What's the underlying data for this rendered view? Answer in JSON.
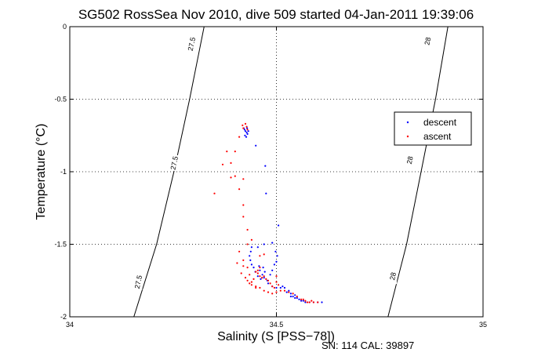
{
  "chart_data": {
    "type": "scatter",
    "title": "SG502 RossSea Nov 2010, dive 509 started 04-Jan-2011 19:39:06",
    "xlabel": "Salinity (S [PSS−78])",
    "ylabel": "Temperature (°C)",
    "xlim": [
      34,
      35
    ],
    "ylim": [
      -2,
      0
    ],
    "x_ticks": [
      "34",
      "34.5",
      "35"
    ],
    "y_ticks": [
      "0",
      "-0.5",
      "-1",
      "-1.5",
      "-2"
    ],
    "grid": "dotted",
    "legend_position": "top-right",
    "density_contours": [
      {
        "label": "27.5",
        "points": [
          [
            34.155,
            -2.0
          ],
          [
            34.21,
            -1.5
          ],
          [
            34.252,
            -1.0
          ],
          [
            34.29,
            -0.5
          ],
          [
            34.325,
            0.0
          ]
        ]
      },
      {
        "label": "28",
        "points": [
          [
            34.77,
            -2.0
          ],
          [
            34.815,
            -1.5
          ],
          [
            34.85,
            -1.0
          ],
          [
            34.885,
            -0.5
          ],
          [
            34.915,
            0.0
          ]
        ]
      }
    ],
    "contour_label_positions": [
      {
        "label": "27.5",
        "x": 34.295,
        "y": -0.12
      },
      {
        "label": "27.5",
        "x": 34.253,
        "y": -0.94
      },
      {
        "label": "27.5",
        "x": 34.166,
        "y": -1.76
      },
      {
        "label": "28",
        "x": 34.866,
        "y": -0.1
      },
      {
        "label": "28",
        "x": 34.823,
        "y": -0.92
      },
      {
        "label": "28",
        "x": 34.782,
        "y": -1.72
      }
    ],
    "series": [
      {
        "name": "descent",
        "color": "#0000ff",
        "points": [
          [
            34.421,
            -0.7
          ],
          [
            34.425,
            -0.72
          ],
          [
            34.428,
            -0.73
          ],
          [
            34.423,
            -0.71
          ],
          [
            34.43,
            -0.74
          ],
          [
            34.432,
            -0.72
          ],
          [
            34.427,
            -0.76
          ],
          [
            34.424,
            -0.75
          ],
          [
            34.429,
            -0.7
          ],
          [
            34.45,
            -0.82
          ],
          [
            34.473,
            -0.96
          ],
          [
            34.475,
            -1.15
          ],
          [
            34.505,
            -1.37
          ],
          [
            34.44,
            -1.52
          ],
          [
            34.455,
            -1.52
          ],
          [
            34.47,
            -1.5
          ],
          [
            34.49,
            -1.49
          ],
          [
            34.438,
            -1.55
          ],
          [
            34.435,
            -1.58
          ],
          [
            34.437,
            -1.61
          ],
          [
            34.44,
            -1.64
          ],
          [
            34.445,
            -1.66
          ],
          [
            34.449,
            -1.69
          ],
          [
            34.455,
            -1.72
          ],
          [
            34.462,
            -1.74
          ],
          [
            34.47,
            -1.73
          ],
          [
            34.478,
            -1.75
          ],
          [
            34.485,
            -1.71
          ],
          [
            34.49,
            -1.68
          ],
          [
            34.495,
            -1.64
          ],
          [
            34.5,
            -1.62
          ],
          [
            34.502,
            -1.58
          ],
          [
            34.498,
            -1.55
          ],
          [
            34.468,
            -1.66
          ],
          [
            34.472,
            -1.69
          ],
          [
            34.466,
            -1.71
          ],
          [
            34.46,
            -1.68
          ],
          [
            34.458,
            -1.65
          ],
          [
            34.48,
            -1.77
          ],
          [
            34.49,
            -1.79
          ],
          [
            34.5,
            -1.8
          ],
          [
            34.51,
            -1.8
          ],
          [
            34.52,
            -1.8
          ],
          [
            34.53,
            -1.82
          ],
          [
            34.535,
            -1.84
          ],
          [
            34.54,
            -1.86
          ],
          [
            34.545,
            -1.87
          ],
          [
            34.55,
            -1.87
          ],
          [
            34.555,
            -1.88
          ],
          [
            34.56,
            -1.89
          ],
          [
            34.565,
            -1.89
          ],
          [
            34.57,
            -1.9
          ],
          [
            34.58,
            -1.9
          ],
          [
            34.59,
            -1.9
          ],
          [
            34.6,
            -1.9
          ],
          [
            34.61,
            -1.9
          ],
          [
            34.545,
            -1.85
          ],
          [
            34.535,
            -1.86
          ],
          [
            34.525,
            -1.83
          ],
          [
            34.515,
            -1.79
          ]
        ]
      },
      {
        "name": "ascent",
        "color": "#ff0000",
        "points": [
          [
            34.418,
            -0.68
          ],
          [
            34.42,
            -0.7
          ],
          [
            34.425,
            -0.67
          ],
          [
            34.43,
            -0.71
          ],
          [
            34.428,
            -0.69
          ],
          [
            34.41,
            -0.76
          ],
          [
            34.4,
            -0.86
          ],
          [
            34.38,
            -0.86
          ],
          [
            34.39,
            -0.94
          ],
          [
            34.37,
            -0.95
          ],
          [
            34.4,
            -1.03
          ],
          [
            34.39,
            -1.04
          ],
          [
            34.42,
            -1.05
          ],
          [
            34.41,
            -1.12
          ],
          [
            34.35,
            -1.15
          ],
          [
            34.42,
            -1.23
          ],
          [
            34.42,
            -1.31
          ],
          [
            34.43,
            -1.4
          ],
          [
            34.44,
            -1.47
          ],
          [
            34.43,
            -1.5
          ],
          [
            34.41,
            -1.55
          ],
          [
            34.405,
            -1.63
          ],
          [
            34.42,
            -1.65
          ],
          [
            34.415,
            -1.7
          ],
          [
            34.425,
            -1.73
          ],
          [
            34.43,
            -1.75
          ],
          [
            34.435,
            -1.77
          ],
          [
            34.44,
            -1.78
          ],
          [
            34.45,
            -1.79
          ],
          [
            34.46,
            -1.8
          ],
          [
            34.47,
            -1.82
          ],
          [
            34.48,
            -1.83
          ],
          [
            34.49,
            -1.84
          ],
          [
            34.5,
            -1.83
          ],
          [
            34.51,
            -1.82
          ],
          [
            34.45,
            -1.69
          ],
          [
            34.455,
            -1.7
          ],
          [
            34.46,
            -1.72
          ],
          [
            34.465,
            -1.73
          ],
          [
            34.47,
            -1.72
          ],
          [
            34.475,
            -1.74
          ],
          [
            34.48,
            -1.75
          ],
          [
            34.485,
            -1.77
          ],
          [
            34.49,
            -1.79
          ],
          [
            34.495,
            -1.8
          ],
          [
            34.455,
            -1.68
          ],
          [
            34.46,
            -1.66
          ],
          [
            34.445,
            -1.74
          ],
          [
            34.44,
            -1.76
          ],
          [
            34.435,
            -1.71
          ],
          [
            34.46,
            -1.58
          ],
          [
            34.47,
            -1.57
          ],
          [
            34.52,
            -1.82
          ],
          [
            34.53,
            -1.83
          ],
          [
            34.54,
            -1.84
          ],
          [
            34.55,
            -1.86
          ],
          [
            34.56,
            -1.88
          ],
          [
            34.57,
            -1.89
          ],
          [
            34.58,
            -1.9
          ],
          [
            34.59,
            -1.9
          ],
          [
            34.6,
            -1.9
          ],
          [
            34.585,
            -1.89
          ],
          [
            34.575,
            -1.9
          ],
          [
            34.565,
            -1.88
          ],
          [
            34.5,
            -1.76
          ],
          [
            34.505,
            -1.78
          ],
          [
            34.45,
            -1.8
          ],
          [
            34.43,
            -1.66
          ],
          [
            34.42,
            -1.61
          ],
          [
            34.5,
            -1.72
          ]
        ]
      }
    ]
  },
  "footer": {
    "sn_cal": "SN: 114  CAL: 39897"
  }
}
